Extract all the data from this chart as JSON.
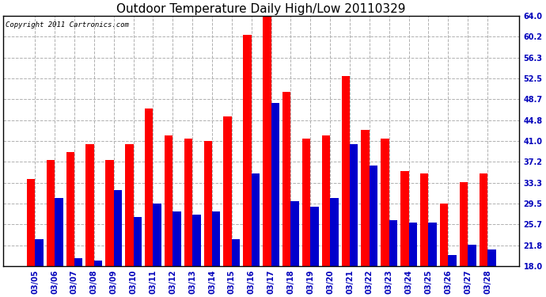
{
  "title": "Outdoor Temperature Daily High/Low 20110329",
  "copyright": "Copyright 2011 Cartronics.com",
  "dates": [
    "03/05",
    "03/06",
    "03/07",
    "03/08",
    "03/09",
    "03/10",
    "03/11",
    "03/12",
    "03/13",
    "03/14",
    "03/15",
    "03/16",
    "03/17",
    "03/18",
    "03/19",
    "03/20",
    "03/21",
    "03/22",
    "03/23",
    "03/24",
    "03/25",
    "03/26",
    "03/27",
    "03/28"
  ],
  "high": [
    34.0,
    37.5,
    39.0,
    40.5,
    37.5,
    40.5,
    47.0,
    42.0,
    41.5,
    41.0,
    45.5,
    60.5,
    64.0,
    50.0,
    41.5,
    42.0,
    53.0,
    43.0,
    41.5,
    35.5,
    35.0,
    29.5,
    33.5,
    35.0
  ],
  "low": [
    23.0,
    30.5,
    19.5,
    19.0,
    32.0,
    27.0,
    29.5,
    28.0,
    27.5,
    28.0,
    23.0,
    35.0,
    48.0,
    30.0,
    29.0,
    30.5,
    40.5,
    36.5,
    26.5,
    26.0,
    26.0,
    20.0,
    22.0,
    21.0
  ],
  "high_color": "#ff0000",
  "low_color": "#0000cc",
  "bg_color": "#ffffff",
  "grid_color": "#b0b0b0",
  "yticks": [
    18.0,
    21.8,
    25.7,
    29.5,
    33.3,
    37.2,
    41.0,
    44.8,
    48.7,
    52.5,
    56.3,
    60.2,
    64.0
  ],
  "ymin": 18.0,
  "ymax": 64.0,
  "bar_width": 0.42,
  "title_fontsize": 11,
  "tick_fontsize": 7,
  "copyright_fontsize": 6.5
}
